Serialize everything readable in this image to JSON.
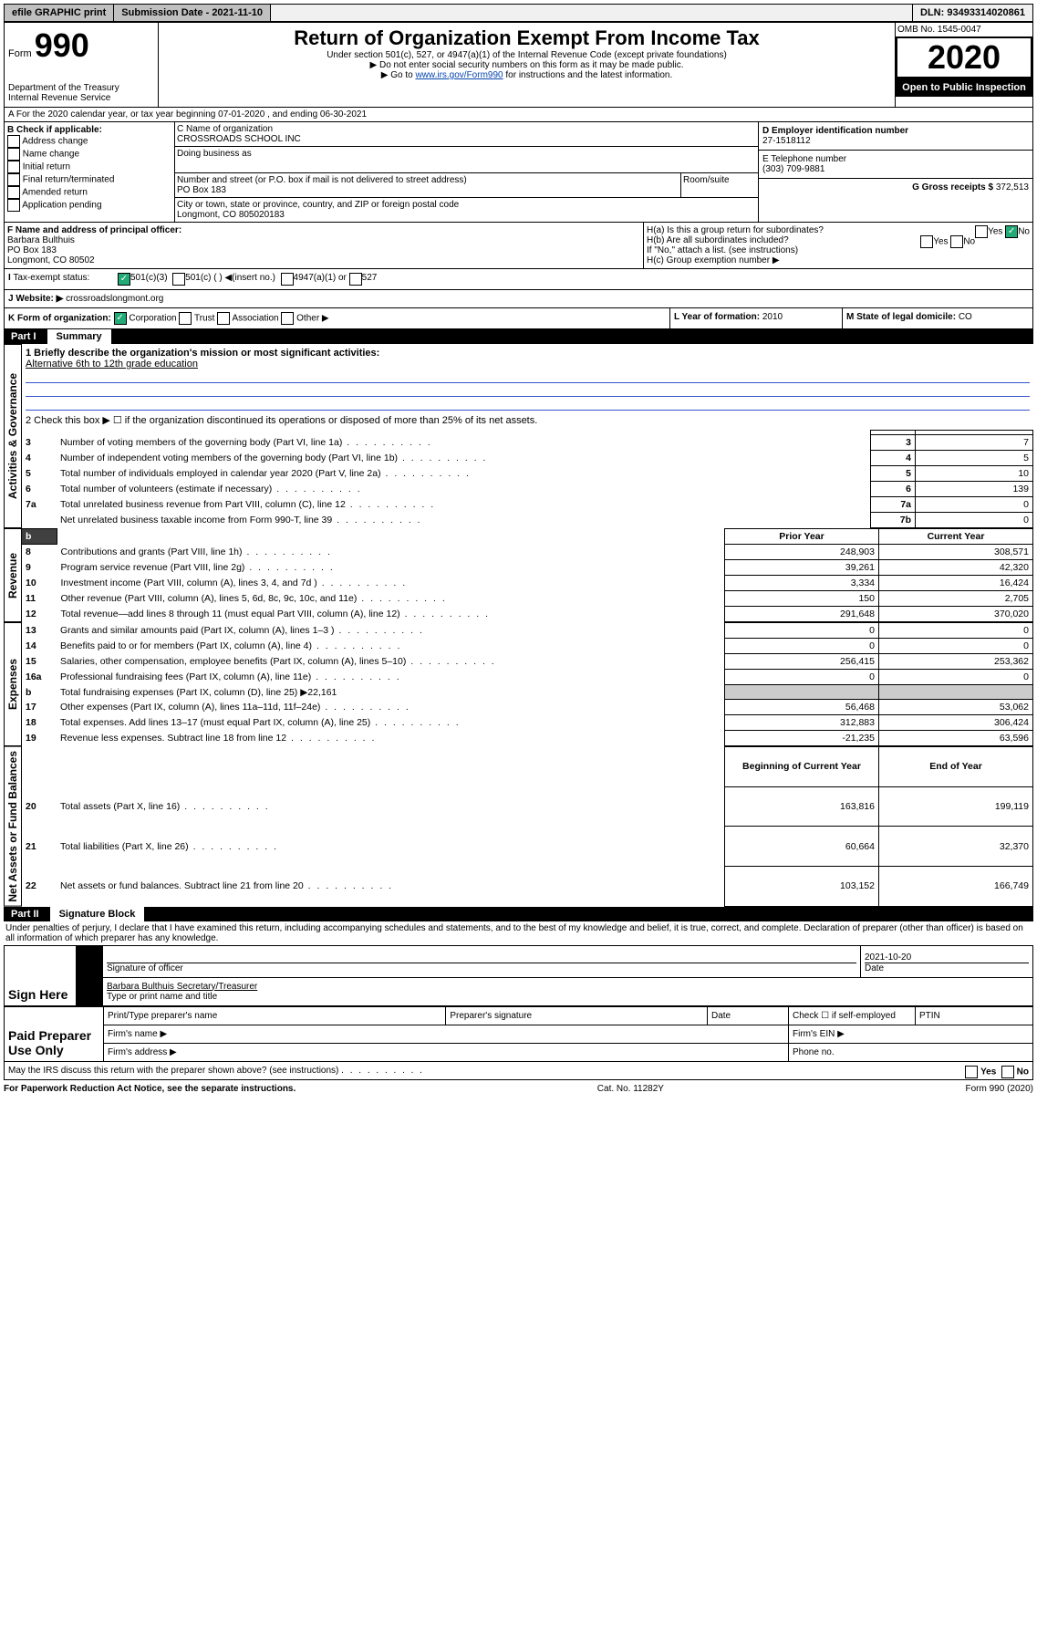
{
  "top": {
    "efile": "efile GRAPHIC print",
    "submission_label": "Submission Date - 2021-11-10",
    "dln": "DLN: 93493314020861"
  },
  "header": {
    "form_label": "Form",
    "form_no": "990",
    "dept": "Department of the Treasury\nInternal Revenue Service",
    "title": "Return of Organization Exempt From Income Tax",
    "subtitle": "Under section 501(c), 527, or 4947(a)(1) of the Internal Revenue Code (except private foundations)",
    "note1": "▶ Do not enter social security numbers on this form as it may be made public.",
    "note2_pre": "▶ Go to ",
    "note2_link": "www.irs.gov/Form990",
    "note2_post": " for instructions and the latest information.",
    "omb": "OMB No. 1545-0047",
    "year": "2020",
    "open": "Open to Public Inspection"
  },
  "A": {
    "line": "A For the 2020 calendar year, or tax year beginning 07-01-2020     , and ending 06-30-2021"
  },
  "B": {
    "label": "B Check if applicable:",
    "opts": [
      "Address change",
      "Name change",
      "Initial return",
      "Final return/terminated",
      "Amended return",
      "Application pending"
    ]
  },
  "C": {
    "name_label": "C Name of organization",
    "name": "CROSSROADS SCHOOL INC",
    "dba_label": "Doing business as",
    "addr_label": "Number and street (or P.O. box if mail is not delivered to street address)",
    "room": "Room/suite",
    "addr": "PO Box 183",
    "city_label": "City or town, state or province, country, and ZIP or foreign postal code",
    "city": "Longmont, CO  805020183"
  },
  "D": {
    "label": "D Employer identification number",
    "val": "27-1518112"
  },
  "E": {
    "label": "E Telephone number",
    "val": "(303) 709-9881"
  },
  "G": {
    "label": "G Gross receipts $",
    "val": "372,513"
  },
  "F": {
    "label": "F  Name and address of principal officer:",
    "name": "Barbara Bulthuis",
    "addr1": "PO Box 183",
    "addr2": "Longmont, CO  80502"
  },
  "H": {
    "a": "H(a)  Is this a group return for subordinates?",
    "b": "H(b)  Are all subordinates included?",
    "b_note": "If \"No,\" attach a list. (see instructions)",
    "c": "H(c)  Group exemption number ▶"
  },
  "I": {
    "label": "Tax-exempt status:",
    "c3": "501(c)(3)",
    "c": "501(c) (  ) ◀(insert no.)",
    "a1": "4947(a)(1) or",
    "s527": "527"
  },
  "J": {
    "label": "Website: ▶",
    "val": "crossroadslongmont.org"
  },
  "K": {
    "label": "K Form of organization:",
    "corp": "Corporation",
    "trust": "Trust",
    "assoc": "Association",
    "other": "Other ▶"
  },
  "L": {
    "label": "L Year of formation:",
    "val": "2010"
  },
  "M": {
    "label": "M State of legal domicile:",
    "val": "CO"
  },
  "part1": {
    "header": "Part I",
    "title": "Summary",
    "q1": "1  Briefly describe the organization's mission or most significant activities:",
    "mission": "Alternative 6th to 12th grade education",
    "q2": "2   Check this box ▶ ☐  if the organization discontinued its operations or disposed of more than 25% of its net assets.",
    "rows_gov": [
      {
        "n": "3",
        "t": "Number of voting members of the governing body (Part VI, line 1a)",
        "k": "3",
        "v": "7"
      },
      {
        "n": "4",
        "t": "Number of independent voting members of the governing body (Part VI, line 1b)",
        "k": "4",
        "v": "5"
      },
      {
        "n": "5",
        "t": "Total number of individuals employed in calendar year 2020 (Part V, line 2a)",
        "k": "5",
        "v": "10"
      },
      {
        "n": "6",
        "t": "Total number of volunteers (estimate if necessary)",
        "k": "6",
        "v": "139"
      },
      {
        "n": "7a",
        "t": "Total unrelated business revenue from Part VIII, column (C), line 12",
        "k": "7a",
        "v": "0"
      },
      {
        "n": "",
        "t": "Net unrelated business taxable income from Form 990-T, line 39",
        "k": "7b",
        "v": "0"
      }
    ],
    "col_prior": "Prior Year",
    "col_curr": "Current Year",
    "rows_rev": [
      {
        "n": "8",
        "t": "Contributions and grants (Part VIII, line 1h)",
        "p": "248,903",
        "c": "308,571"
      },
      {
        "n": "9",
        "t": "Program service revenue (Part VIII, line 2g)",
        "p": "39,261",
        "c": "42,320"
      },
      {
        "n": "10",
        "t": "Investment income (Part VIII, column (A), lines 3, 4, and 7d )",
        "p": "3,334",
        "c": "16,424"
      },
      {
        "n": "11",
        "t": "Other revenue (Part VIII, column (A), lines 5, 6d, 8c, 9c, 10c, and 11e)",
        "p": "150",
        "c": "2,705"
      },
      {
        "n": "12",
        "t": "Total revenue—add lines 8 through 11 (must equal Part VIII, column (A), line 12)",
        "p": "291,648",
        "c": "370,020"
      }
    ],
    "rows_exp": [
      {
        "n": "13",
        "t": "Grants and similar amounts paid (Part IX, column (A), lines 1–3 )",
        "p": "0",
        "c": "0"
      },
      {
        "n": "14",
        "t": "Benefits paid to or for members (Part IX, column (A), line 4)",
        "p": "0",
        "c": "0"
      },
      {
        "n": "15",
        "t": "Salaries, other compensation, employee benefits (Part IX, column (A), lines 5–10)",
        "p": "256,415",
        "c": "253,362"
      },
      {
        "n": "16a",
        "t": "Professional fundraising fees (Part IX, column (A), line 11e)",
        "p": "0",
        "c": "0"
      },
      {
        "n": "b",
        "t": "Total fundraising expenses (Part IX, column (D), line 25) ▶22,161",
        "p": "",
        "c": ""
      },
      {
        "n": "17",
        "t": "Other expenses (Part IX, column (A), lines 11a–11d, 11f–24e)",
        "p": "56,468",
        "c": "53,062"
      },
      {
        "n": "18",
        "t": "Total expenses. Add lines 13–17 (must equal Part IX, column (A), line 25)",
        "p": "312,883",
        "c": "306,424"
      },
      {
        "n": "19",
        "t": "Revenue less expenses. Subtract line 18 from line 12",
        "p": "-21,235",
        "c": "63,596"
      }
    ],
    "col_beg": "Beginning of Current Year",
    "col_end": "End of Year",
    "rows_net": [
      {
        "n": "20",
        "t": "Total assets (Part X, line 16)",
        "p": "163,816",
        "c": "199,119"
      },
      {
        "n": "21",
        "t": "Total liabilities (Part X, line 26)",
        "p": "60,664",
        "c": "32,370"
      },
      {
        "n": "22",
        "t": "Net assets or fund balances. Subtract line 21 from line 20",
        "p": "103,152",
        "c": "166,749"
      }
    ],
    "side_gov": "Activities & Governance",
    "side_rev": "Revenue",
    "side_exp": "Expenses",
    "side_net": "Net Assets or Fund Balances"
  },
  "part2": {
    "header": "Part II",
    "title": "Signature Block",
    "decl": "Under penalties of perjury, I declare that I have examined this return, including accompanying schedules and statements, and to the best of my knowledge and belief, it is true, correct, and complete. Declaration of preparer (other than officer) is based on all information of which preparer has any knowledge.",
    "sign_here": "Sign Here",
    "sig_officer": "Signature of officer",
    "sig_date": "2021-10-20",
    "date_label": "Date",
    "typed_name": "Barbara Bulthuis  Secretary/Treasurer",
    "typed_label": "Type or print name and title",
    "paid": "Paid Preparer Use Only",
    "prep_name": "Print/Type preparer's name",
    "prep_sig": "Preparer's signature",
    "prep_date": "Date",
    "self_emp": "Check ☐ if self-employed",
    "ptin": "PTIN",
    "firm_name": "Firm's name   ▶",
    "firm_ein": "Firm's EIN ▶",
    "firm_addr": "Firm's address ▶",
    "phone": "Phone no.",
    "discuss": "May the IRS discuss this return with the preparer shown above? (see instructions)",
    "yes": "Yes",
    "no": "No"
  },
  "footer": {
    "pra": "For Paperwork Reduction Act Notice, see the separate instructions.",
    "cat": "Cat. No. 11282Y",
    "form": "Form 990 (2020)"
  }
}
